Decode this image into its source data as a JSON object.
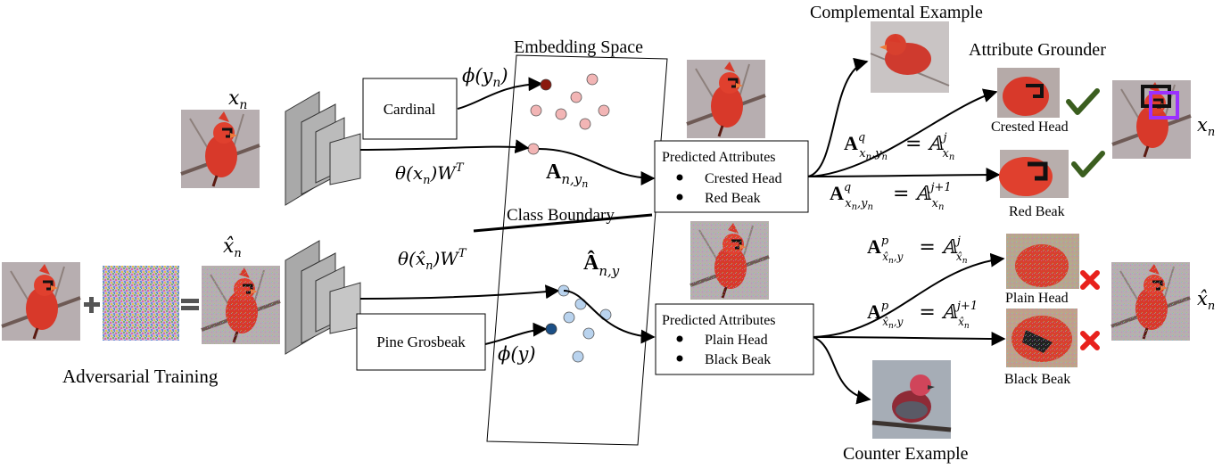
{
  "labels": {
    "embedding_space": "Embedding Space",
    "complemental_example": "Complemental Example",
    "attribute_grounder": "Attribute Grounder",
    "class_boundary": "Class Boundary",
    "adversarial_training": "Adversarial Training",
    "counter_example": "Counter Example",
    "crested_head": "Crested Head",
    "red_beak": "Red Beak",
    "plain_head": "Plain Head",
    "black_beak": "Black Beak"
  },
  "boxes": {
    "cardinal": "Cardinal",
    "pine_grosbeak": "Pine Grosbeak",
    "predicted_top": {
      "title": "Predicted Attributes",
      "items": [
        "Crested Head",
        "Red Beak"
      ]
    },
    "predicted_bottom": {
      "title": "Predicted Attributes",
      "items": [
        "Plain Head",
        "Black Beak"
      ]
    }
  },
  "math": {
    "x_n": "x",
    "x_n_sub": "n",
    "xhat_n": "x̂",
    "phi_yn": "ϕ(y",
    "phi_yn_sub": "n",
    "phi_y": "ϕ(y)",
    "theta_xn": "θ(x",
    "theta_xhat": "θ(x̂",
    "A_ny": "A",
    "A_ny_sub": "n,y",
    "Ahat_ny": "Â",
    "Ahat_ny_sub": "n,y",
    "eq1": "= 𝔸",
    "eq1_sup": "j",
    "eq2_sup": "j+1",
    "x_sub": "x",
    "xhat_sub": "x̂"
  },
  "colors": {
    "bird_red": "#d83a2a",
    "bg_branch": "#b0a7a8",
    "dark_red_dot": "#8b1a0e",
    "pink_dot": "#f2b5b5",
    "dark_blue_dot": "#1b4f86",
    "light_blue_dot": "#b9d3ee",
    "check_green": "#3b5e1f",
    "cross_red": "#e8211c",
    "grounder_purple": "#9b30ff",
    "cnn_gray": "#a8a8a8"
  },
  "icons": [
    "cardinal-photo",
    "noise-image",
    "check-icon",
    "cross-icon",
    "cnn-block-icon",
    "plus-icon",
    "equals-icon"
  ]
}
